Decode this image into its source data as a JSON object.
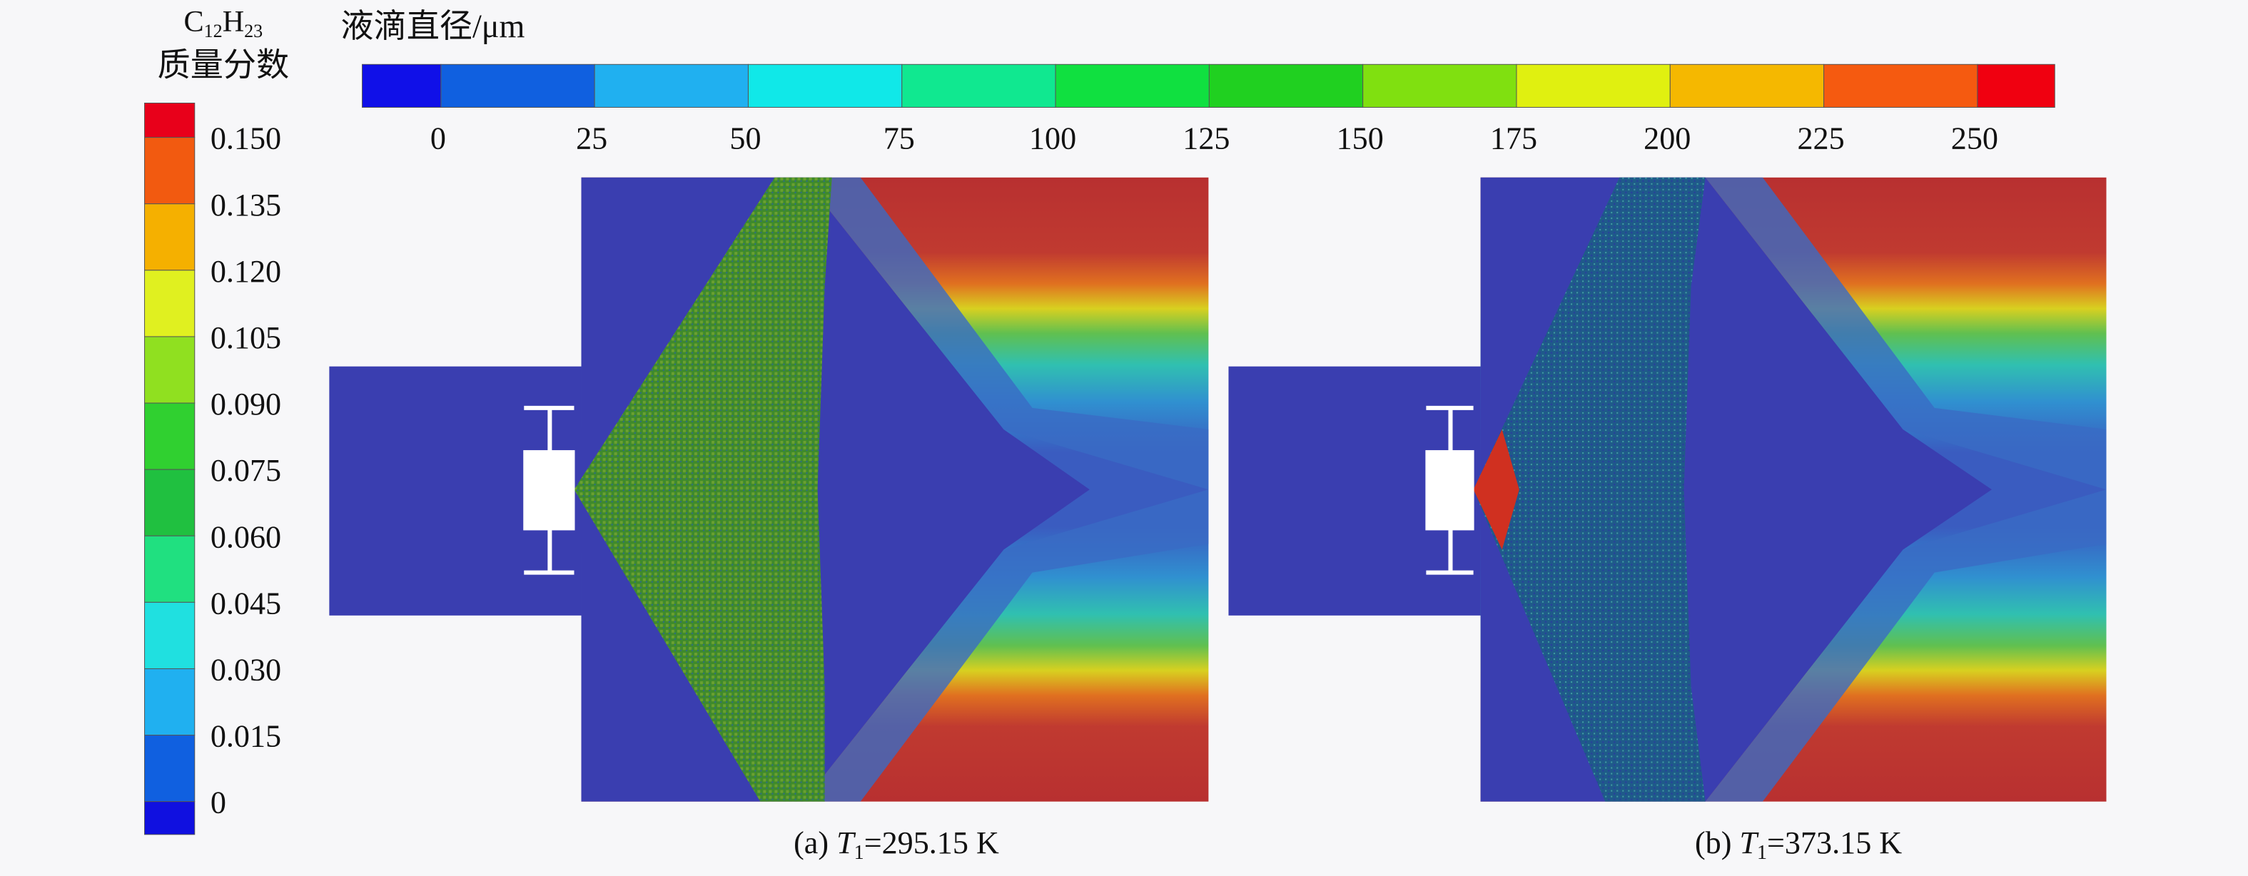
{
  "figure": {
    "left_colorbar": {
      "title_base1": "C",
      "title_sub1": "12",
      "title_base2": "H",
      "title_sub2": "23",
      "title_line2": "质量分数",
      "ticks": [
        "0.150",
        "0.135",
        "0.120",
        "0.105",
        "0.090",
        "0.075",
        "0.060",
        "0.045",
        "0.030",
        "0.015",
        "0"
      ],
      "colors": [
        "#e8001a",
        "#f25a10",
        "#f5b000",
        "#e0f020",
        "#90e020",
        "#30d030",
        "#20c040",
        "#20e080",
        "#20e0e0",
        "#20b0f0",
        "#1060e0",
        "#1010e0"
      ]
    },
    "top_colorbar": {
      "title": "液滴直径/μm",
      "ticks": [
        "0",
        "25",
        "50",
        "75",
        "100",
        "125",
        "150",
        "175",
        "200",
        "225",
        "250"
      ],
      "colors": [
        "#1010e8",
        "#1060e0",
        "#20b0f0",
        "#10e8e8",
        "#10e890",
        "#10e040",
        "#20d020",
        "#80e010",
        "#e0f010",
        "#f5b800",
        "#f55a10",
        "#f00010"
      ]
    },
    "panels": [
      {
        "caption_prefix": "(a) ",
        "caption_var": "T",
        "caption_sub": "1",
        "caption_value": "=295.15 K"
      },
      {
        "caption_prefix": "(b) ",
        "caption_var": "T",
        "caption_sub": "1",
        "caption_value": "=373.15 K"
      }
    ]
  }
}
